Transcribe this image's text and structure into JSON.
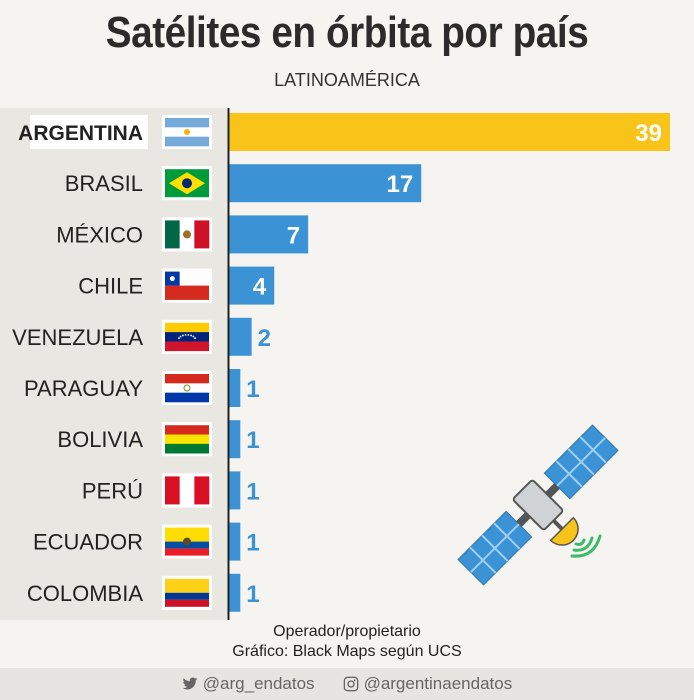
{
  "chart_data": {
    "type": "bar",
    "orientation": "horizontal",
    "title": "Satélites en órbita por país",
    "subtitle": "LATINOAMÉRICA",
    "categories": [
      "ARGENTINA",
      "BRASIL",
      "MÉXICO",
      "CHILE",
      "VENEZUELA",
      "PARAGUAY",
      "BOLIVIA",
      "PERÚ",
      "ECUADOR",
      "COLOMBIA"
    ],
    "values": [
      39,
      17,
      7,
      4,
      2,
      1,
      1,
      1,
      1,
      1
    ],
    "highlight": "ARGENTINA",
    "colors": {
      "highlight": "#f8c41a",
      "default": "#3b93d5",
      "axis": "#222222",
      "label_panel": "#e8e7e1"
    },
    "xlim": [
      0,
      39
    ],
    "grid": false,
    "legend": "none"
  },
  "notes": {
    "line1": "Operador/propietario",
    "line2": "Gráfico: Black Maps según UCS"
  },
  "social": {
    "twitter_icon": "twitter-bird-icon",
    "twitter": "@arg_endatos",
    "instagram_icon": "instagram-icon",
    "instagram": "@argentinaendatos"
  }
}
